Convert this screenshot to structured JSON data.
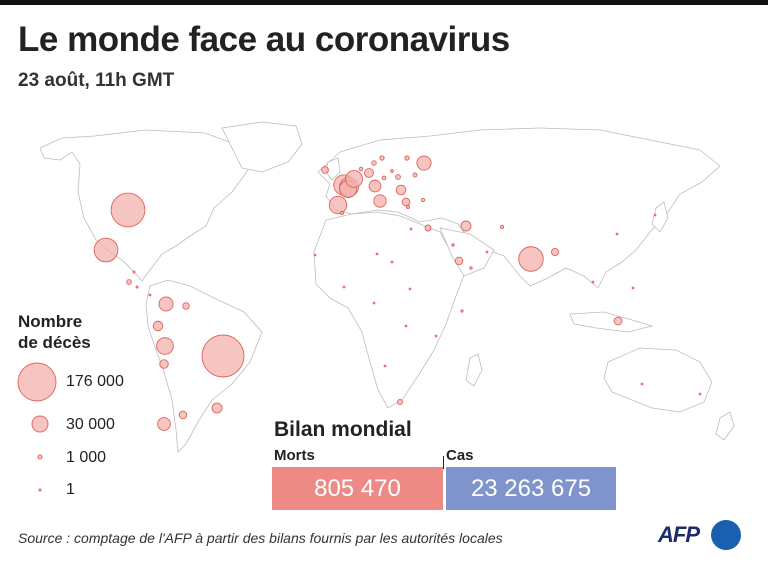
{
  "header": {
    "title": "Le monde face au coronavirus",
    "subtitle": "23 août, 11h GMT"
  },
  "legend": {
    "title_line1": "Nombre",
    "title_line2": "de décès",
    "items": [
      {
        "label": "176 000",
        "value": 176000
      },
      {
        "label": "30 000",
        "value": 30000
      },
      {
        "label": "1 000",
        "value": 1000
      },
      {
        "label": "1",
        "value": 1
      }
    ]
  },
  "bilan": {
    "title": "Bilan mondial",
    "deaths_label": "Morts",
    "deaths_value": "805 470",
    "cases_label": "Cas",
    "cases_value": "23 263 675",
    "deaths_color": "#ee8a86",
    "cases_color": "#8094cc"
  },
  "footer": {
    "source": "Source : comptage de l'AFP à partir des bilans fournis par les autorités locales",
    "logo": "AFP"
  },
  "colors": {
    "bubble_fill": "#f3b2ae",
    "bubble_stroke": "#e0625c",
    "land_stroke": "#bdbdbd",
    "logo_blue": "#1a5fb0"
  },
  "map_data": {
    "bubbles_deaths": [
      176000,
      114000,
      60000,
      56000,
      41500,
      35400,
      30300,
      28800,
      28600,
      27900,
      20000,
      19700,
      16400,
      15400,
      13800,
      10000,
      9800,
      9300,
      9000,
      8000,
      7400,
      6200,
      6000,
      5800,
      5700,
      5000,
      4700,
      4300,
      3600,
      2600,
      2400,
      2300,
      2100,
      1900,
      1800,
      1600,
      1400,
      1300,
      1200,
      1100,
      1000,
      900,
      800,
      700,
      600,
      500,
      450,
      400,
      350,
      300,
      250,
      200,
      150,
      120,
      100,
      80,
      60,
      50,
      40,
      30,
      25,
      20,
      15,
      10,
      5,
      1
    ]
  }
}
